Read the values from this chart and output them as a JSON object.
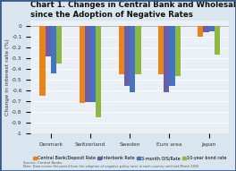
{
  "title": "Chart 1. Changes in Central Bank and Wholesale Rates\nsince the Adoption of Negative Rates",
  "categories": [
    "Denmark",
    "Switzerland",
    "Sweden",
    "Euro area",
    "Japan"
  ],
  "series": {
    "Central Bank/Deposit Rate": [
      -0.65,
      -0.72,
      -0.45,
      -0.45,
      -0.1
    ],
    "Interbank Rate": [
      -0.28,
      -0.71,
      -0.56,
      -0.62,
      -0.06
    ],
    "3-month OIS/Rate": [
      -0.44,
      -0.71,
      -0.62,
      -0.56,
      -0.05
    ],
    "10-year bond rate": [
      -0.35,
      -0.85,
      -0.45,
      -0.47,
      -0.27
    ]
  },
  "colors": [
    "#E8841A",
    "#6B5EA8",
    "#4472C4",
    "#8CB843"
  ],
  "ylabel": "Change in interest rate (%)",
  "ylim": [
    -1.0,
    0.05
  ],
  "yticks": [
    -1.0,
    -0.9,
    -0.8,
    -0.7,
    -0.6,
    -0.5,
    -0.4,
    -0.3,
    -0.2,
    -0.1,
    0.0
  ],
  "ytick_labels": [
    "-1",
    "-0.9",
    "-0.8",
    "-0.7",
    "-0.6",
    "-0.5",
    "-0.4",
    "-0.3",
    "-0.2",
    "-0.1",
    "0"
  ],
  "legend_labels": [
    "Central Bank/Deposit Rate",
    "Interbank Rate",
    "3-month OIS/Rate",
    "10-year bond rate"
  ],
  "source_line1": "Source: Central Banks",
  "source_line2": "Note: Data covers the period from the adoption of negative policy rates in each country until end March 2016",
  "background_color": "#D9E5EF",
  "plot_bg_color": "#EAF0F6",
  "border_color": "#3A5A8C",
  "title_fontsize": 6.2,
  "axis_fontsize": 4.5,
  "tick_fontsize": 4.2,
  "legend_fontsize": 3.5,
  "bar_width": 0.14
}
